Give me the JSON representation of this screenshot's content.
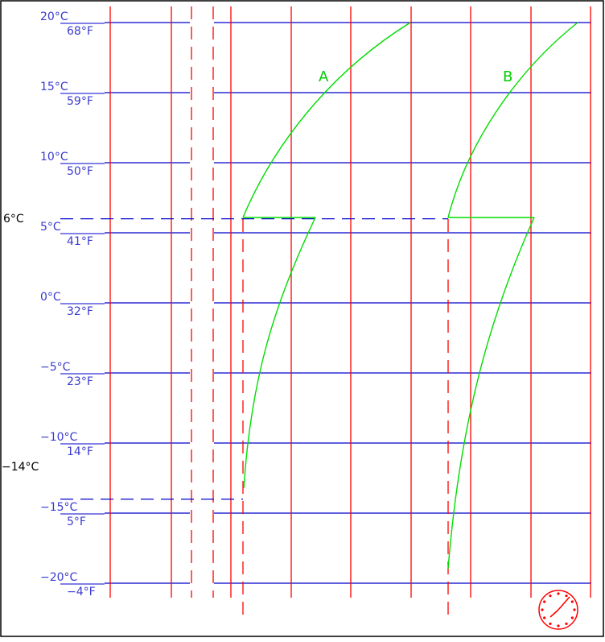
{
  "diagram": {
    "temperature_levels": [
      {
        "celsius": "20°C",
        "fahrenheit": "68°F",
        "value_c": 20
      },
      {
        "celsius": "15°C",
        "fahrenheit": "59°F",
        "value_c": 15
      },
      {
        "celsius": "10°C",
        "fahrenheit": "50°F",
        "value_c": 10
      },
      {
        "celsius": "5°C",
        "fahrenheit": "41°F",
        "value_c": 5
      },
      {
        "celsius": "0°C",
        "fahrenheit": "32°F",
        "value_c": 0
      },
      {
        "celsius": "−5°C",
        "fahrenheit": "23°F",
        "value_c": -5
      },
      {
        "celsius": "−10°C",
        "fahrenheit": "14°F",
        "value_c": -10
      },
      {
        "celsius": "−15°C",
        "fahrenheit": "5°F",
        "value_c": -15
      },
      {
        "celsius": "−20°C",
        "fahrenheit": "−4°F",
        "value_c": -20
      }
    ],
    "marked_temperatures": [
      {
        "label": "6°C",
        "value_c": 6
      },
      {
        "label": "−14°C",
        "value_c": -14
      }
    ],
    "curves": [
      {
        "label": "A"
      },
      {
        "label": "B"
      }
    ],
    "colors": {
      "grid_horizontal": "#0000cc",
      "grid_vertical": "#ff0000",
      "curve": "#00dd00",
      "marker": "#0000cc",
      "clock": "#ff0000"
    },
    "icon": "clock-icon"
  }
}
